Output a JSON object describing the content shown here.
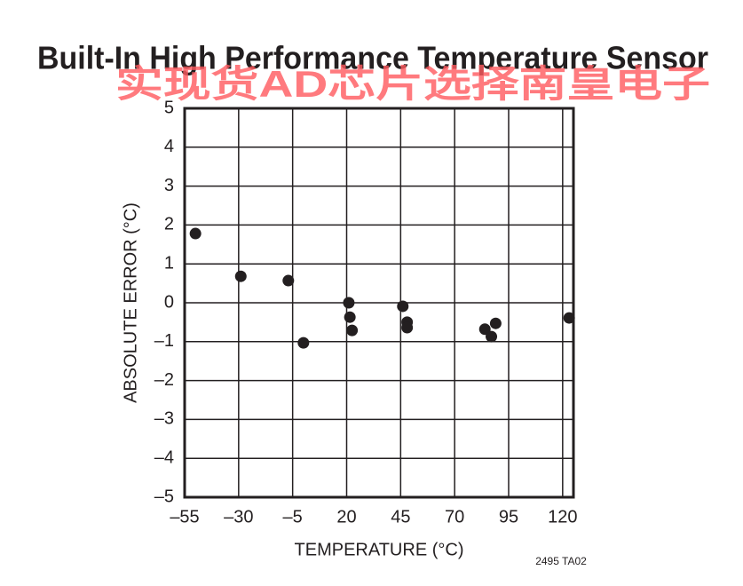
{
  "chart_data": {
    "type": "scatter",
    "title": "Built-In High Performance Temperature Sensor",
    "watermark": "实现货AD芯片选择南皇电子",
    "x_label": "TEMPERATURE (°C)",
    "y_label": "ABSOLUTE ERROR (°C)",
    "note": "2495 TA02",
    "color": "#231f20",
    "x": [
      -50,
      -29,
      -7,
      0,
      21,
      21.5,
      22.5,
      46,
      48,
      48,
      84,
      87,
      89,
      123
    ],
    "values": [
      1.78,
      0.68,
      0.57,
      -1.03,
      0,
      -0.37,
      -0.71,
      -0.09,
      -0.5,
      -0.64,
      -0.68,
      -0.87,
      -0.53,
      -0.39
    ],
    "xlim": [
      -55,
      125
    ],
    "xticks": [
      {
        "value": -55,
        "label": "–55"
      },
      {
        "value": -30,
        "label": "–30"
      },
      {
        "value": -5,
        "label": "–5"
      },
      20,
      45,
      70,
      95,
      120
    ],
    "ylim": [
      -5,
      5
    ],
    "yticks": [
      {
        "value": -5,
        "label": "–5"
      },
      {
        "value": -4,
        "label": "–4"
      },
      {
        "value": -3,
        "label": "–3"
      },
      {
        "value": -2,
        "label": "–2"
      },
      {
        "value": -1,
        "label": "–1"
      },
      0,
      1,
      2,
      3,
      4,
      5
    ],
    "grid": true
  }
}
